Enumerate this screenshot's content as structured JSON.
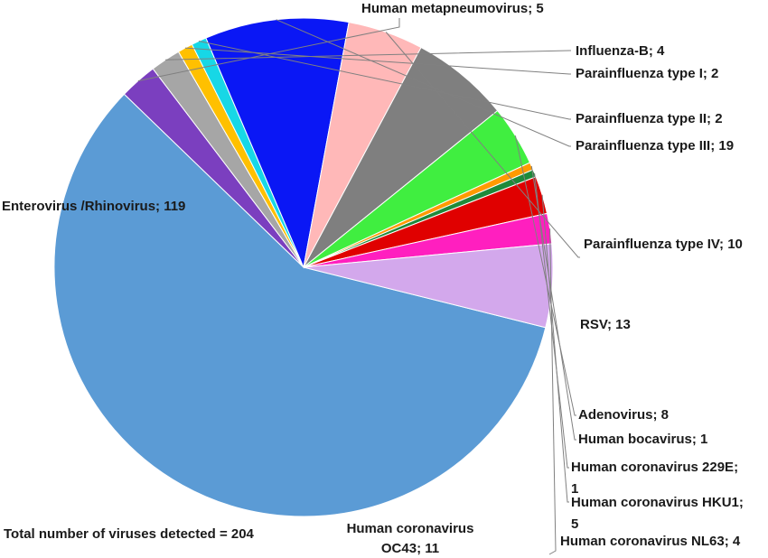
{
  "chart_data": {
    "type": "pie",
    "title": "",
    "note": "Total number of viruses detected = 204",
    "slices": [
      {
        "label": "Enterovirus /Rhinovirus",
        "value": 119,
        "display": "Enterovirus /Rhinovirus; 119",
        "color": "#5b9bd5"
      },
      {
        "label": "Human metapneumovirus",
        "value": 5,
        "display": "Human metapneumovirus; 5",
        "color": "#7b3fbf"
      },
      {
        "label": "Influenza-B",
        "value": 4,
        "display": "Influenza-B; 4",
        "color": "#a6a6a6"
      },
      {
        "label": "Parainfluenza type I",
        "value": 2,
        "display": "Parainfluenza type I; 2",
        "color": "#ffc000"
      },
      {
        "label": "Parainfluenza type II",
        "value": 2,
        "display": "Parainfluenza type II; 2",
        "color": "#17d7e6"
      },
      {
        "label": "Parainfluenza type III",
        "value": 19,
        "display": "Parainfluenza type III; 19",
        "color": "#0a17f5"
      },
      {
        "label": "Parainfluenza type IV",
        "value": 10,
        "display": "Parainfluenza type IV; 10",
        "color": "#ffb8b8"
      },
      {
        "label": "RSV",
        "value": 13,
        "display": "RSV; 13",
        "color": "#7f7f7f"
      },
      {
        "label": "Adenovirus",
        "value": 8,
        "display": "Adenovirus; 8",
        "color": "#40ee40"
      },
      {
        "label": "Human bocavirus",
        "value": 1,
        "display": "Human bocavirus; 1",
        "color": "#ff9a00"
      },
      {
        "label": "Human coronavirus 229E",
        "value": 1,
        "display": [
          "Human coronavirus 229E;",
          "1"
        ],
        "color": "#1e8a3a"
      },
      {
        "label": "Human coronavirus HKU1",
        "value": 5,
        "display": [
          "Human coronavirus HKU1;",
          "5"
        ],
        "color": "#e00000"
      },
      {
        "label": "Human coronavirus NL63",
        "value": 4,
        "display": "Human coronavirus NL63; 4",
        "color": "#ff1fbf"
      },
      {
        "label": "Human coronavirus OC43",
        "value": 11,
        "display": [
          "Human coronavirus",
          "OC43; 11"
        ],
        "color": "#d3a8ec"
      }
    ]
  }
}
